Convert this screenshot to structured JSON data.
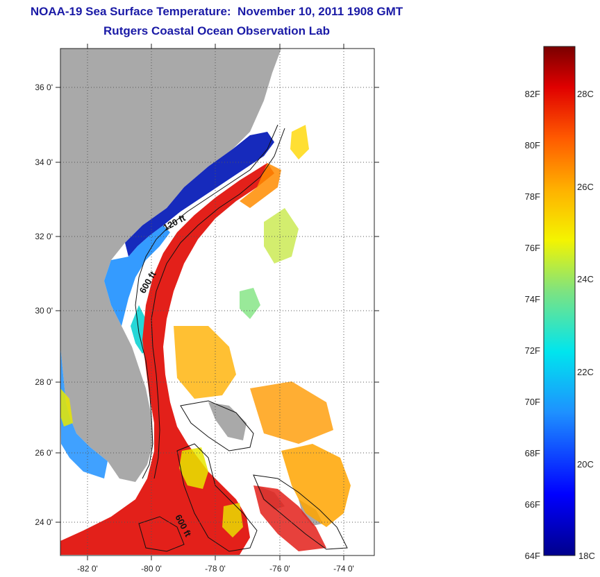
{
  "header": {
    "title": "NOAA-19 Sea Surface Temperature:  November 10, 2011 1908 GMT",
    "subtitle": "Rutgers Coastal Ocean Observation Lab"
  },
  "map": {
    "lat_labels": [
      {
        "lat": 36,
        "label": "36 0'"
      },
      {
        "lat": 34,
        "label": "34 0'"
      },
      {
        "lat": 32,
        "label": "32 0'"
      },
      {
        "lat": 30,
        "label": "30 0'"
      },
      {
        "lat": 28,
        "label": "28 0'"
      },
      {
        "lat": 26,
        "label": "26 0'"
      },
      {
        "lat": 24,
        "label": "24 0'"
      }
    ],
    "lon_labels": [
      {
        "lon": -82,
        "label": "-82 0'"
      },
      {
        "lon": -80,
        "label": "-80 0'"
      },
      {
        "lon": -78,
        "label": "-78 0'"
      },
      {
        "lon": -76,
        "label": "-76 0'"
      },
      {
        "lon": -74,
        "label": "-74 0'"
      }
    ],
    "contour_labels": [
      "120 ft",
      "600 ft",
      "600 ft"
    ],
    "colors": {
      "land": "#a9a9a9",
      "gulf_stream": "#e3201a",
      "cold_shelf": "#0a1fb8",
      "title_blue": "#1a1aa6"
    }
  },
  "colorbar": {
    "fahrenheit_labels": [
      "82F",
      "80F",
      "78F",
      "76F",
      "74F",
      "72F",
      "70F",
      "68F",
      "66F",
      "64F"
    ],
    "celsius_labels": [
      "28C",
      "26C",
      "24C",
      "22C",
      "20C",
      "18C"
    ]
  }
}
